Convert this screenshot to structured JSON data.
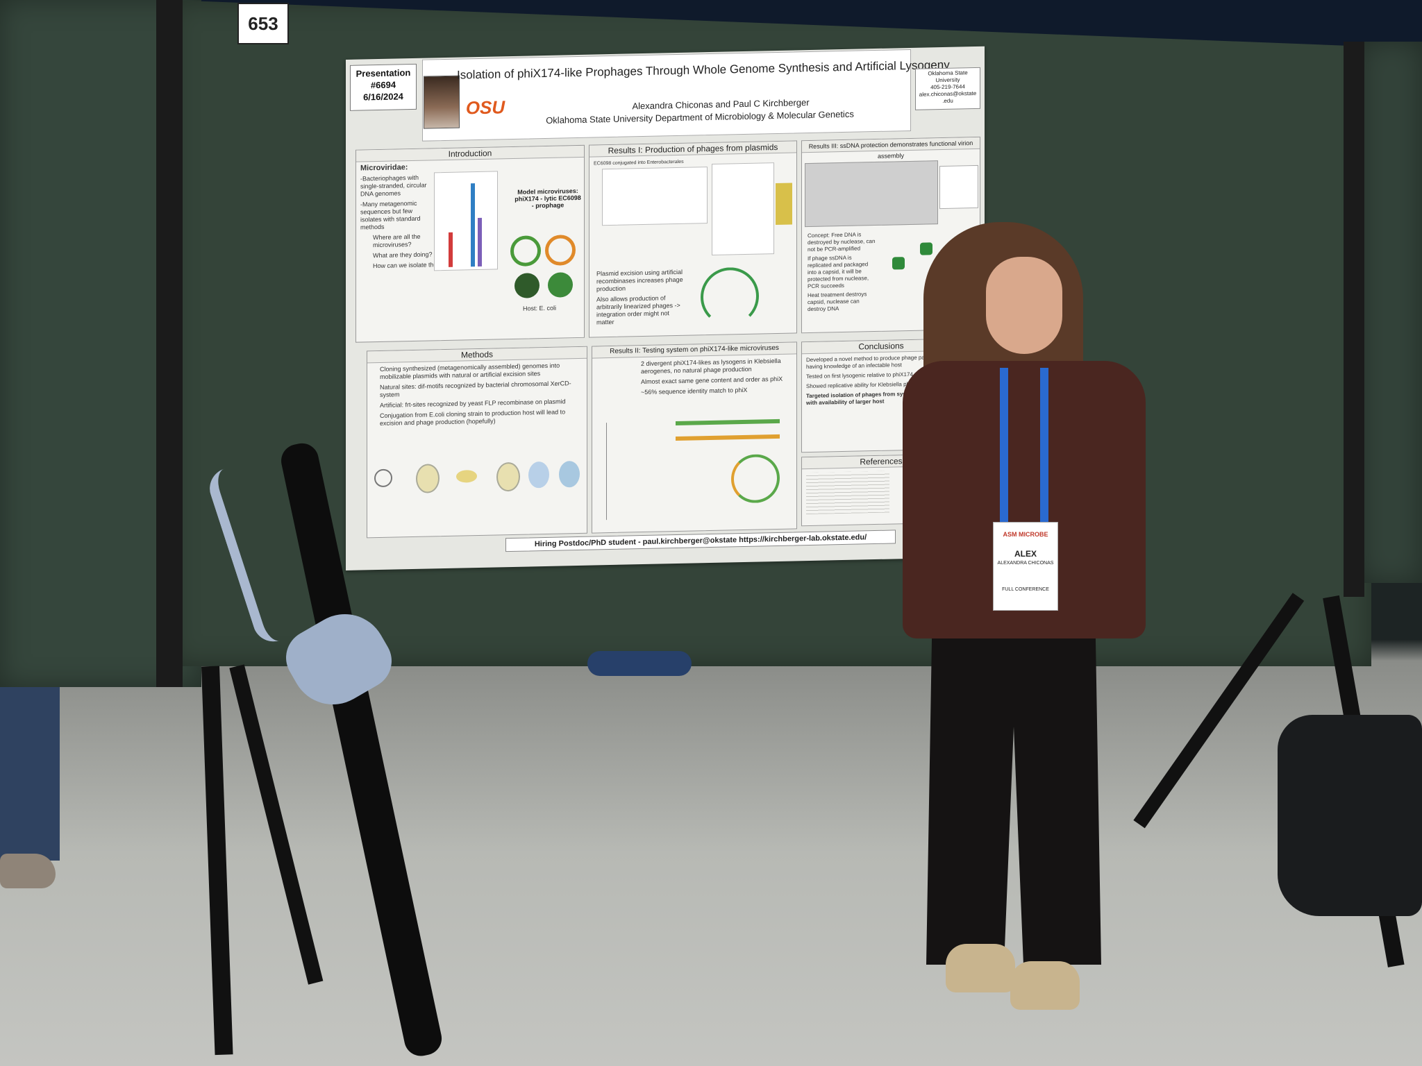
{
  "booth": {
    "number": "653"
  },
  "poster": {
    "presentation": [
      "Presentation",
      "#6694",
      "6/16/2024"
    ],
    "logo_text": "OSU",
    "title": "Isolation of phiX174-like Prophages Through Whole Genome Synthesis and Artificial Lysogeny",
    "authors": "Alexandra Chiconas and Paul C Kirchberger",
    "affiliation": "Oklahoma State University Department of Microbiology & Molecular Genetics",
    "contact": [
      "Oklahoma State",
      "University",
      "405-219-7644",
      "alex.chiconas@okstate",
      ".edu"
    ],
    "sections": {
      "introduction": {
        "title": "Introduction",
        "lines": [
          "Microviridae:",
          "-Bacteriophages with single-stranded, circular DNA genomes",
          "-Many metagenomic sequences but few isolates with standard methods",
          "Where are all the microviruses?",
          "What are they doing?",
          "How can we isolate them?",
          "Model microviruses: phiX174 - lytic EC6098 - prophage",
          "Host: E. coli"
        ]
      },
      "results1": {
        "title": "Results I: Production of phages from plasmids",
        "lines": [
          "EC6098 conjugated into Enterobacterales",
          "Plasmid excision using artificial recombinases increases phage production",
          "Also allows production of arbitrarily linearized phages -> integration order might not matter"
        ]
      },
      "results3": {
        "title": "Results III: ssDNA protection demonstrates functional virion assembly",
        "lines": [
          "Concept: Free DNA is destroyed by nuclease, can not be PCR-amplified",
          "If phage ssDNA is replicated and packaged into a capsid, it will be protected from nuclease, PCR succeeds",
          "Heat treatment destroys capsid, nuclease can destroy DNA"
        ]
      },
      "methods": {
        "title": "Methods",
        "lines": [
          "Cloning synthesized (metagenomically assembled) genomes into mobilizable plasmids with natural or artificial excision sites",
          "Natural sites: dif-motifs recognized by bacterial chromosomal XerCD-system",
          "Artificial: frt-sites recognized by yeast FLP recombinase on plasmid",
          "Conjugation from E.coli cloning strain to production host will lead to excision and phage production (hopefully)"
        ]
      },
      "results2": {
        "title": "Results II: Testing system on phiX174-like microviruses",
        "lines": [
          "2 divergent phiX174-likes as lysogens in Klebsiella aerogenes, no natural phage production",
          "Almost exact same gene content and order as phiX",
          "~56% sequence identity match to phiX"
        ]
      },
      "conclusions": {
        "title": "Conclusions",
        "lines": [
          "Developed a novel method to produce phage particles having knowledge of an infectable host",
          "Tested on first lysogenic relative to phiX174",
          "Showed replicative ability for Klebsiella phage",
          "Targeted isolation of phages from synthesis be possible with availability of larger host"
        ]
      },
      "references": {
        "title": "References"
      }
    },
    "footer": "Hiring Postdoc/PhD student - paul.kirchberger@okstate https://kirchberger-lab.okstate.edu/"
  },
  "badge": {
    "org": "ASM MICROBE",
    "name": "ALEX",
    "full_name": "ALEXANDRA CHICONAS",
    "type": "FULL CONFERENCE"
  },
  "colors": {
    "board": "#344439",
    "poster": "#e6e7e2",
    "lanyard": "#2a6ad0",
    "osu_orange": "#e05a1e"
  }
}
